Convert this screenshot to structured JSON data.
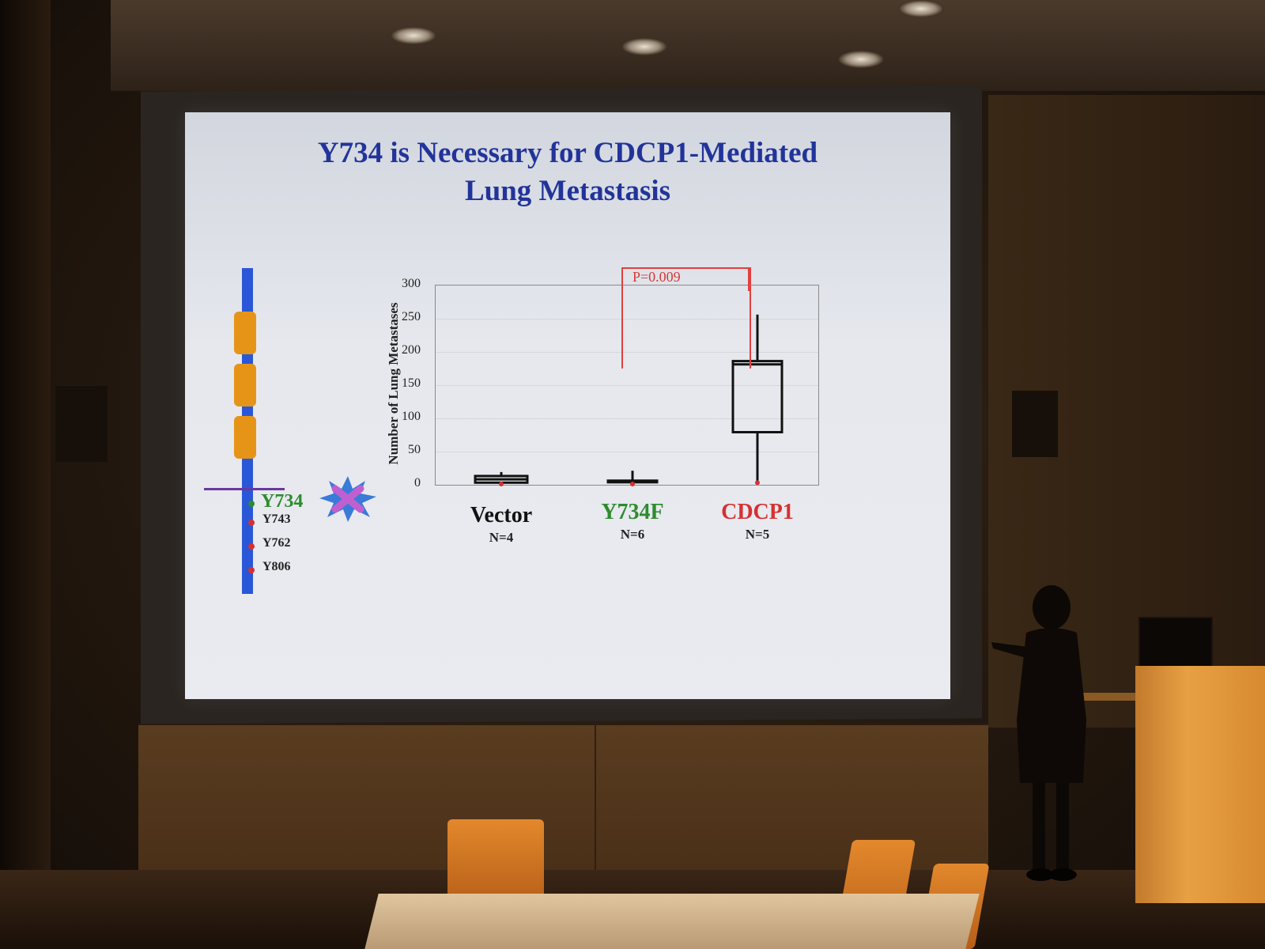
{
  "slide": {
    "title_line1": "Y734 is Necessary for CDCP1-Mediated",
    "title_line2": "Lung Metastasis",
    "protein_sites": [
      {
        "label": "Y734",
        "color": "#2e8b2e"
      },
      {
        "label": "Y743",
        "color": "#d83030"
      },
      {
        "label": "Y762",
        "color": "#d83030"
      },
      {
        "label": "Y806",
        "color": "#d83030"
      }
    ],
    "colors": {
      "title": "#22349a",
      "protein_bar": "#2a57d8",
      "domain": "#e69418",
      "membrane": "#6a38a0",
      "significance": "#d83838"
    }
  },
  "chart_data": {
    "type": "box",
    "ylabel": "Number of Lung Metastases",
    "ylim": [
      0,
      300
    ],
    "yticks": [
      "0",
      "50",
      "100",
      "150",
      "200",
      "250",
      "300"
    ],
    "grid": true,
    "categories": [
      "Vector",
      "Y734F",
      "CDCP1"
    ],
    "category_colors": [
      "#111111",
      "#2e8b2e",
      "#d83030"
    ],
    "n_labels": [
      "N=4",
      "N=6",
      "N=5"
    ],
    "boxes": [
      {
        "name": "Vector",
        "min": 0,
        "q1": 2,
        "median": 7,
        "q3": 12,
        "max": 18
      },
      {
        "name": "Y734F",
        "min": 0,
        "q1": 3,
        "median": 4,
        "q3": 5,
        "max": 20
      },
      {
        "name": "CDCP1",
        "min": 2,
        "q1": 78,
        "median": 180,
        "q3": 185,
        "max": 255
      }
    ],
    "significance": {
      "text": "P=0.009",
      "from": "Y734F",
      "to": "CDCP1"
    }
  }
}
